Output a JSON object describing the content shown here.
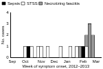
{
  "chart_data": {
    "type": "bar",
    "x_label": "Week of symptom onset, 2012–2013",
    "y_label": "No. cases",
    "categories": [
      "Sep",
      null,
      null,
      null,
      "Oct",
      null,
      null,
      null,
      null,
      "Nov",
      null,
      null,
      null,
      "Dec",
      null,
      null,
      null,
      "Jan",
      null,
      null,
      null,
      null,
      "Feb",
      null,
      null,
      null,
      "Mar",
      null
    ],
    "series": [
      {
        "name": "Sepsis",
        "color": "#000000",
        "values": [
          0,
          0,
          0,
          0,
          0,
          1,
          0,
          0,
          0,
          0,
          0,
          0,
          0,
          0,
          0,
          0,
          0,
          0,
          0,
          0,
          0,
          0,
          1,
          0,
          0,
          0,
          0,
          0
        ]
      },
      {
        "name": "STSS",
        "color": "#ffffff",
        "values": [
          0,
          0,
          0,
          0,
          1,
          0,
          1,
          0,
          1,
          1,
          0,
          1,
          0,
          0,
          0,
          1,
          0,
          0,
          1,
          0,
          1,
          0,
          0,
          1,
          0,
          0,
          0,
          0
        ]
      },
      {
        "name": "Necrotizing fasciitis",
        "color": "#9a9a9a",
        "values": [
          0,
          0,
          0,
          0,
          0,
          0,
          0,
          0,
          0,
          0,
          0,
          0,
          0,
          0,
          0,
          0,
          0,
          0,
          0,
          0,
          0,
          1,
          0,
          1,
          3,
          2,
          0,
          0
        ]
      }
    ],
    "stacked": true,
    "legend": "top-left",
    "grid": false,
    "ylim": [
      0,
      4
    ],
    "yticks": [
      0,
      1,
      2,
      3,
      4
    ]
  }
}
